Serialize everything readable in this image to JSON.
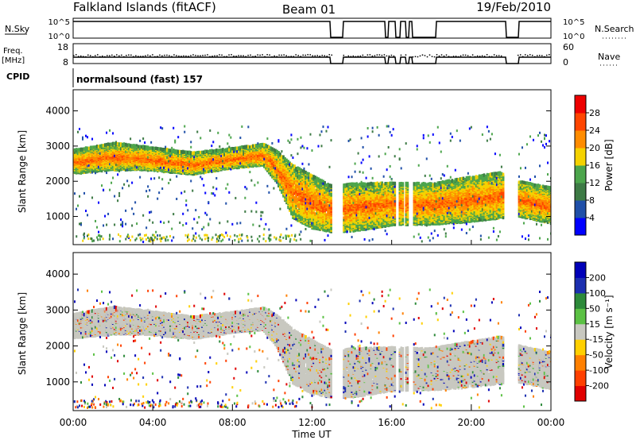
{
  "header": {
    "station": "Falkland Islands (fitACF)",
    "beam": "Beam 01",
    "date": "19/Feb/2010"
  },
  "labels": {
    "nsky": "N.Sky",
    "nsearch": "N.Search",
    "freq_top": "Freq.",
    "freq_unit": "[MHz]",
    "nave": "Nave",
    "cpid": "CPID",
    "cpid_value": "normalsound (fast) 157"
  },
  "strip_ticks": {
    "nsky_left": [
      "10^5",
      "10^0"
    ],
    "nsky_right": [
      "10^5",
      "10^0"
    ],
    "freq_left": [
      "18",
      "8"
    ],
    "nave_right": [
      "60",
      "0"
    ]
  },
  "colors": {
    "power": [
      "#0000ff",
      "#1f4fa8",
      "#3d7a45",
      "#4ca54c",
      "#f5d200",
      "#ff8c00",
      "#ff4500",
      "#ee0000"
    ],
    "velocity": [
      "#0000b8",
      "#1c2fb0",
      "#2d8a3a",
      "#5bc144",
      "#c8c8c0",
      "#ffd000",
      "#ff8000",
      "#ff4000",
      "#e00000"
    ],
    "ground_scatter": "#c8c8c0"
  },
  "chart_data": [
    {
      "type": "heatmap",
      "name": "power",
      "ylabel": "Slant Range [km]",
      "yticks": [
        "1000",
        "2000",
        "3000",
        "4000"
      ],
      "ylim": [
        200,
        4600
      ],
      "xlim": [
        "00:00",
        "24:00"
      ],
      "colorbar_label": "Power [dB]",
      "colorbar_ticks": [
        "4",
        "8",
        "12",
        "16",
        "20",
        "24",
        "28"
      ],
      "colorbar_range": [
        0,
        32
      ],
      "data_gaps_ut": [
        [
          13.0,
          13.5
        ],
        [
          16.2,
          16.35
        ],
        [
          16.55,
          16.65
        ],
        [
          16.8,
          17.0
        ],
        [
          21.6,
          22.3
        ]
      ]
    },
    {
      "type": "heatmap",
      "name": "velocity",
      "ylabel": "Slant Range [km]",
      "yticks": [
        "1000",
        "2000",
        "3000",
        "4000"
      ],
      "ylim": [
        200,
        4600
      ],
      "xlim": [
        "00:00",
        "24:00"
      ],
      "colorbar_label": "Velocity [m s⁻¹]",
      "colorbar_ticks": [
        "200",
        "100",
        "50",
        "15",
        "-15",
        "-50",
        "-100",
        "-200"
      ],
      "colorbar_range": [
        -250,
        250
      ],
      "xlabel": "Time UT",
      "xticks": [
        "00:00",
        "04:00",
        "08:00",
        "12:00",
        "16:00",
        "20:00",
        "00:00"
      ]
    }
  ]
}
